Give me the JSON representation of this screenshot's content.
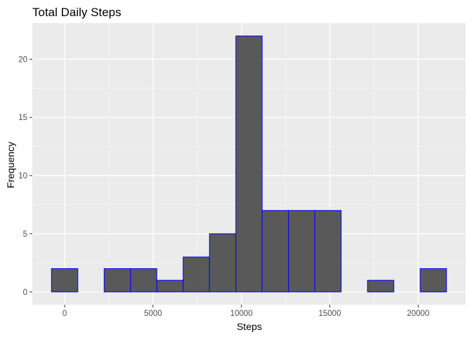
{
  "chart_data": {
    "type": "bar",
    "title": "Total Daily Steps",
    "xlabel": "Steps",
    "ylabel": "Frequency",
    "bin_width": 1490,
    "bins": [
      {
        "start": -745,
        "end": 745,
        "count": 2
      },
      {
        "start": 745,
        "end": 2235,
        "count": 0
      },
      {
        "start": 2235,
        "end": 3725,
        "count": 2
      },
      {
        "start": 3725,
        "end": 5215,
        "count": 2
      },
      {
        "start": 5215,
        "end": 6705,
        "count": 1
      },
      {
        "start": 6705,
        "end": 8195,
        "count": 3
      },
      {
        "start": 8195,
        "end": 9685,
        "count": 5
      },
      {
        "start": 9685,
        "end": 11175,
        "count": 22
      },
      {
        "start": 11175,
        "end": 12665,
        "count": 7
      },
      {
        "start": 12665,
        "end": 14155,
        "count": 7
      },
      {
        "start": 14155,
        "end": 15645,
        "count": 7
      },
      {
        "start": 15645,
        "end": 17135,
        "count": 0
      },
      {
        "start": 17135,
        "end": 18625,
        "count": 1
      },
      {
        "start": 18625,
        "end": 20115,
        "count": 0
      },
      {
        "start": 20115,
        "end": 21605,
        "count": 2
      }
    ],
    "x_ticks": [
      0,
      5000,
      10000,
      15000,
      20000
    ],
    "y_ticks": [
      0,
      5,
      10,
      15,
      20
    ],
    "xlim": [
      -1830,
      22690
    ],
    "ylim": [
      -1.1,
      23.1
    ],
    "grid": true,
    "colors": {
      "panel_background": "#ebebeb",
      "grid_major": "#ffffff",
      "grid_minor": "#f5f5f5",
      "bar_fill": "#595959",
      "bar_outline": "#0000ff",
      "tick_mark": "#333333"
    }
  }
}
